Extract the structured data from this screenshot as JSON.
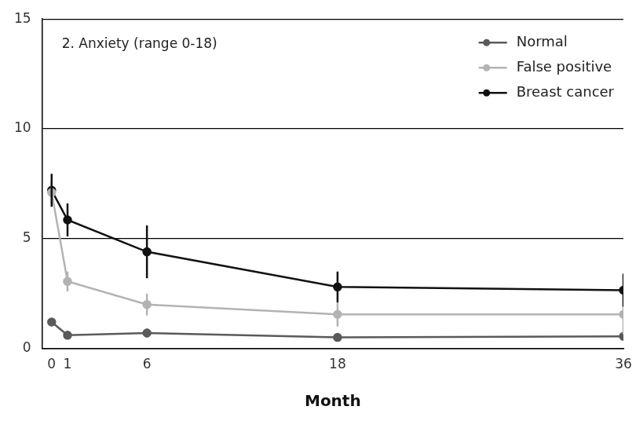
{
  "chart_data": {
    "type": "line",
    "title": "2. Anxiety (range 0-18)",
    "x_label": "Month",
    "x": [
      0,
      1,
      6,
      18,
      36
    ],
    "xlim": [
      -0.6,
      36
    ],
    "xticks": [
      0,
      1,
      6,
      18,
      36
    ],
    "ylim": [
      0,
      15
    ],
    "yticks": [
      0,
      5,
      10,
      15
    ],
    "grid": true,
    "legend": "upper right",
    "marker": "circle",
    "series": [
      {
        "name": "Normal",
        "color": "#5a5a5a",
        "values": [
          1.2,
          0.6,
          0.7,
          0.5,
          0.55
        ],
        "error": [
          0.1,
          0.1,
          0.2,
          0.1,
          0.1
        ]
      },
      {
        "name": "False positive",
        "color": "#b3b3b3",
        "values": [
          7.1,
          3.05,
          2.0,
          1.55,
          1.55
        ],
        "error": [
          0.5,
          0.45,
          0.5,
          0.55,
          0.9
        ]
      },
      {
        "name": "Breast cancer",
        "color": "#111111",
        "values": [
          7.2,
          5.85,
          4.4,
          2.8,
          2.65
        ],
        "error": [
          0.75,
          0.75,
          1.2,
          0.7,
          0.75
        ]
      }
    ]
  }
}
